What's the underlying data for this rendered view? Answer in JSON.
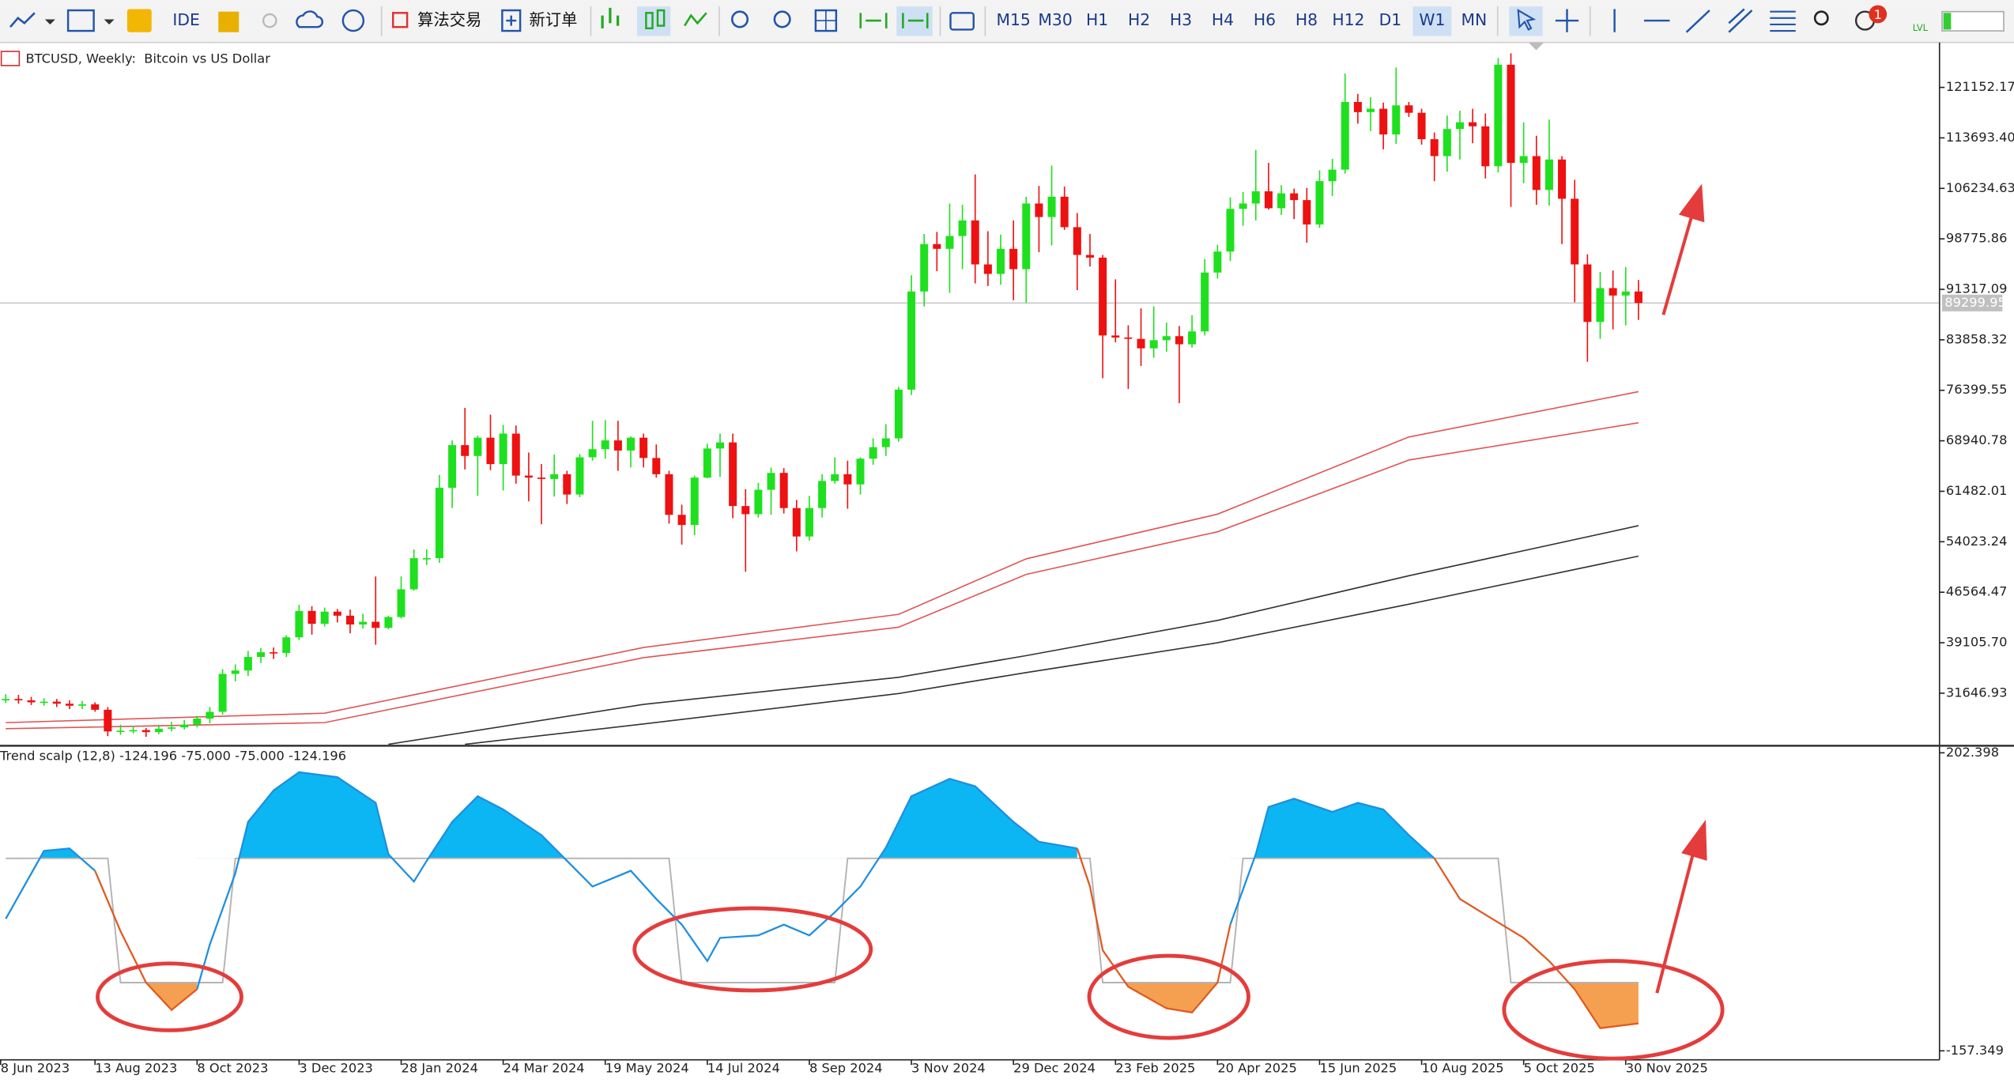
{
  "toolbar": {
    "ide": "IDE",
    "algo_trading": "算法交易",
    "new_order": "新订单",
    "timeframes": [
      "M15",
      "M30",
      "H1",
      "H2",
      "H3",
      "H4",
      "H6",
      "H8",
      "H12",
      "D1",
      "W1",
      "MN"
    ],
    "active_timeframe": "W1",
    "notifications": 1,
    "lvl": "LVL"
  },
  "chart_data": [
    {
      "type": "candlestick",
      "title": "BTCUSD, Weekly:  Bitcoin vs US Dollar",
      "xlim": [
        -0.45,
        151.6
      ],
      "ylim": [
        23979,
        127415
      ],
      "xticks": [
        {
          "value": -0.4,
          "label": "8 Jun 2023"
        },
        {
          "value": 7,
          "label": "13 Aug 2023"
        },
        {
          "value": 15,
          "label": "8 Oct 2023"
        },
        {
          "value": 23,
          "label": "3 Dec 2023"
        },
        {
          "value": 31,
          "label": "28 Jan 2024"
        },
        {
          "value": 39,
          "label": "24 Mar 2024"
        },
        {
          "value": 47,
          "label": "19 May 2024"
        },
        {
          "value": 55,
          "label": "14 Jul 2024"
        },
        {
          "value": 63,
          "label": "8 Sep 2024"
        },
        {
          "value": 71,
          "label": "3 Nov 2024"
        },
        {
          "value": 79,
          "label": "29 Dec 2024"
        },
        {
          "value": 87,
          "label": "23 Feb 2025"
        },
        {
          "value": 95,
          "label": "20 Apr 2025"
        },
        {
          "value": 103,
          "label": "15 Jun 2025"
        },
        {
          "value": 111,
          "label": "10 Aug 2025"
        },
        {
          "value": 119,
          "label": "5 Oct 2025"
        },
        {
          "value": 127,
          "label": "30 Nov 2025"
        }
      ],
      "yticks": [
        121152.17,
        {
          "value": 113693.4,
          "label": "113693.40"
        },
        106234.63,
        98775.86,
        91317.09,
        83858.32,
        76399.55,
        68940.78,
        61482.01,
        54023.24,
        46564.47,
        {
          "value": 39105.7,
          "label": "39105.70"
        },
        31646.93
      ],
      "current_price": 89299.95,
      "up_color": "#1fe01f",
      "down_color": "#ee1111",
      "open": [
        30600,
        30800,
        30600,
        30300,
        30400,
        30100,
        29800,
        30000,
        29200,
        26000,
        26100,
        26200,
        25900,
        26400,
        26600,
        27000,
        27900,
        28900,
        34500,
        35000,
        37000,
        37700,
        37600,
        39900,
        43800,
        41900,
        43700,
        43100,
        41800,
        42200,
        41300,
        42900,
        47000,
        51600,
        51600,
        62000,
        68300,
        66700,
        69400,
        65500,
        70000,
        63800,
        63500,
        63300,
        64000,
        61000,
        66500,
        67700,
        69000,
        67500,
        69400,
        66400,
        64000,
        58000,
        56500,
        63500,
        67800,
        68700,
        59300,
        58100,
        61700,
        64200,
        59000,
        54800,
        59000,
        63000,
        64000,
        62500,
        66300,
        68000,
        69300,
        76500,
        91000,
        98000,
        97300,
        99200,
        101500,
        95000,
        93600,
        97300,
        94300,
        104000,
        102000,
        105000,
        100500,
        96400,
        96000,
        84500,
        84200,
        84000,
        82600,
        83800,
        84400,
        83200,
        85100,
        93800,
        96900,
        103200,
        104000,
        105800,
        103300,
        105500,
        104500,
        100900,
        107300,
        109000,
        119000,
        117500,
        118000,
        114200,
        118500,
        117400,
        113500,
        111000,
        115000,
        116000,
        115400,
        109500,
        124500,
        110000,
        111000,
        106000,
        110500,
        104700,
        95000,
        86500,
        91500,
        90400,
        91000
      ],
      "high": [
        31500,
        31400,
        31100,
        30900,
        30800,
        30600,
        30500,
        30300,
        29600,
        27000,
        26800,
        26500,
        27000,
        27400,
        27700,
        28300,
        29600,
        35200,
        35900,
        37900,
        38300,
        38400,
        40200,
        44700,
        44500,
        44300,
        44100,
        44000,
        43400,
        48900,
        43100,
        48900,
        52900,
        52900,
        63900,
        69000,
        73800,
        69700,
        72800,
        71300,
        71200,
        67200,
        65500,
        66900,
        64500,
        67000,
        71900,
        72000,
        71900,
        69600,
        70000,
        68400,
        64500,
        59500,
        63800,
        68500,
        70000,
        70000,
        61800,
        62700,
        65000,
        64900,
        60200,
        60800,
        64000,
        66500,
        66000,
        66500,
        69300,
        71400,
        76900,
        93400,
        99500,
        99800,
        104000,
        103800,
        108300,
        99900,
        99400,
        101500,
        105000,
        106600,
        109600,
        106500,
        102600,
        99500,
        96400,
        92800,
        86000,
        88500,
        88800,
        86400,
        85900,
        87500,
        95800,
        97900,
        104900,
        105700,
        111900,
        110000,
        106700,
        106200,
        106300,
        108900,
        110600,
        123200,
        120200,
        119700,
        118900,
        124100,
        119000,
        118000,
        114500,
        117000,
        117700,
        118000,
        117300,
        125500,
        126200,
        116000,
        114000,
        116400,
        111000,
        107500,
        96500,
        93900,
        94100,
        94600,
        92700
      ],
      "low": [
        30200,
        30100,
        29900,
        29800,
        29600,
        29300,
        29300,
        28900,
        25300,
        25500,
        25700,
        25200,
        25600,
        26000,
        26300,
        26600,
        27200,
        28500,
        33400,
        34200,
        36100,
        36700,
        37000,
        39500,
        40300,
        41500,
        42100,
        40500,
        41200,
        38800,
        41100,
        42700,
        46800,
        50600,
        50900,
        59000,
        64700,
        60800,
        64600,
        61600,
        62600,
        60000,
        56600,
        60700,
        59600,
        60600,
        66000,
        66300,
        64500,
        65000,
        65000,
        63500,
        56700,
        53600,
        55000,
        63400,
        63600,
        57500,
        49600,
        57600,
        58000,
        58200,
        52600,
        54200,
        57600,
        62600,
        58900,
        61000,
        65400,
        66700,
        68800,
        75700,
        88800,
        94000,
        90800,
        94300,
        92200,
        91800,
        92000,
        89700,
        89300,
        96800,
        97800,
        100100,
        91200,
        94700,
        78200,
        83500,
        76600,
        80000,
        81200,
        82100,
        74500,
        82700,
        84500,
        92900,
        95500,
        100700,
        101500,
        103100,
        102300,
        101700,
        98200,
        100400,
        105100,
        108400,
        115800,
        114700,
        112000,
        112800,
        116800,
        112700,
        107300,
        108700,
        110500,
        112900,
        107700,
        108600,
        103500,
        107000,
        103800,
        103700,
        98000,
        89400,
        80600,
        84000,
        85400,
        86000,
        86800
      ],
      "close": [
        30800,
        30600,
        30300,
        30400,
        30100,
        29800,
        30000,
        29200,
        26000,
        26100,
        26200,
        25900,
        26400,
        26600,
        27000,
        27900,
        28900,
        34500,
        35000,
        37000,
        37700,
        37600,
        39900,
        43800,
        41900,
        43700,
        43100,
        41800,
        42200,
        41300,
        42900,
        47000,
        51600,
        51600,
        62000,
        68300,
        66700,
        69400,
        65500,
        70000,
        63800,
        63500,
        63300,
        64000,
        61000,
        66500,
        67700,
        69000,
        67500,
        69400,
        66400,
        64000,
        58000,
        56500,
        63500,
        67800,
        68700,
        59300,
        58100,
        61700,
        64200,
        59000,
        54800,
        59000,
        63000,
        64000,
        62500,
        66300,
        68000,
        69300,
        76500,
        91000,
        98000,
        97300,
        99200,
        101500,
        95000,
        93600,
        97300,
        94300,
        104000,
        102000,
        105000,
        100500,
        96400,
        96000,
        84500,
        84200,
        84000,
        82600,
        83800,
        84400,
        83200,
        85100,
        93800,
        96900,
        103200,
        104000,
        105800,
        103300,
        105500,
        104500,
        100900,
        107300,
        109000,
        119000,
        117500,
        118000,
        114200,
        118500,
        117400,
        113500,
        111000,
        115000,
        116000,
        115400,
        109500,
        124500,
        110000,
        111000,
        106000,
        110500,
        104700,
        95000,
        86500,
        91500,
        90400,
        91000,
        89300
      ],
      "lines": [
        {
          "color": "#e05555",
          "x": [
            0,
            25,
            50,
            70,
            80,
            95,
            110,
            128
          ],
          "values": [
            27300,
            28700,
            38400,
            43300,
            51500,
            58100,
            69500,
            76200
          ]
        },
        {
          "color": "#e05555",
          "x": [
            0,
            25,
            50,
            70,
            80,
            95,
            110,
            128
          ],
          "values": [
            26400,
            27300,
            36900,
            41400,
            49200,
            55500,
            66100,
            71600
          ]
        },
        {
          "color": "#333333",
          "x": [
            30,
            50,
            70,
            80,
            95,
            110,
            128
          ],
          "values": [
            24100,
            30000,
            34000,
            37200,
            42400,
            49000,
            56400
          ]
        },
        {
          "color": "#333333",
          "x": [
            36,
            50,
            70,
            80,
            95,
            110,
            128
          ],
          "values": [
            24100,
            27100,
            31600,
            34700,
            39100,
            44800,
            51900
          ]
        }
      ]
    },
    {
      "type": "line",
      "title": "Trend scalp (12,8) -124.196 -75.000 -75.000 -124.196",
      "xlim": [
        -0.45,
        151.6
      ],
      "ylim": [
        -157.349,
        202.398
      ],
      "yticks": [
        202.398,
        -157.349
      ],
      "x": [
        0,
        3,
        5,
        7,
        9,
        11,
        13,
        15,
        16,
        18,
        19,
        21,
        23,
        26,
        29,
        30,
        32,
        33,
        35,
        37,
        39,
        42,
        44,
        46,
        49,
        51,
        53,
        55,
        56,
        59,
        61,
        63,
        65,
        67,
        69,
        71,
        74,
        76,
        79,
        81,
        84,
        85,
        86,
        88,
        91,
        93,
        95,
        96,
        98,
        99,
        101,
        104,
        106,
        108,
        110,
        112,
        114,
        116,
        119,
        121,
        123,
        125,
        128
      ],
      "series": [
        {
          "color": "#1e8fe0",
          "fill": {
            "level": 75,
            "side": "above",
            "color": "#0cb6f2"
          },
          "values": [
            2,
            84,
            87,
            60,
            null,
            null,
            null,
            -83,
            -29,
            57,
            119,
            157,
            179,
            173,
            142,
            80,
            47,
            72,
            119,
            150,
            134,
            103,
            72,
            41,
            60,
            26,
            -5,
            -49,
            -21,
            -18,
            -5,
            -18,
            10,
            41,
            88,
            150,
            171,
            162,
            119,
            95,
            87,
            null,
            null,
            null,
            null,
            null,
            null,
            -5,
            80,
            137,
            147,
            131,
            142,
            134,
            103,
            75,
            null,
            null,
            null,
            null,
            null,
            null,
            null
          ]
        },
        {
          "color": "#e05a20",
          "fill": {
            "level": -75,
            "side": "below",
            "color": "#f5a050"
          },
          "values": [
            null,
            null,
            null,
            60,
            -13,
            -75,
            -108,
            -83,
            null,
            null,
            null,
            null,
            null,
            null,
            null,
            null,
            null,
            null,
            null,
            null,
            null,
            null,
            null,
            null,
            null,
            null,
            null,
            null,
            null,
            null,
            null,
            null,
            null,
            null,
            null,
            null,
            null,
            null,
            null,
            null,
            87,
            41,
            -36,
            -80,
            -106,
            -111,
            -75,
            -5,
            null,
            null,
            null,
            null,
            null,
            null,
            null,
            75,
            26,
            7,
            -21,
            -49,
            -83,
            -130,
            -124.196
          ]
        }
      ],
      "levels": {
        "color": "#b4b4b4",
        "x": [
          0,
          8,
          9,
          17,
          18,
          52,
          53,
          65,
          66,
          85,
          86,
          96,
          97,
          117,
          118,
          128
        ],
        "values": [
          75,
          75,
          -75,
          -75,
          75,
          75,
          -75,
          -75,
          75,
          75,
          -75,
          -75,
          75,
          75,
          -75,
          -75
        ]
      }
    }
  ]
}
